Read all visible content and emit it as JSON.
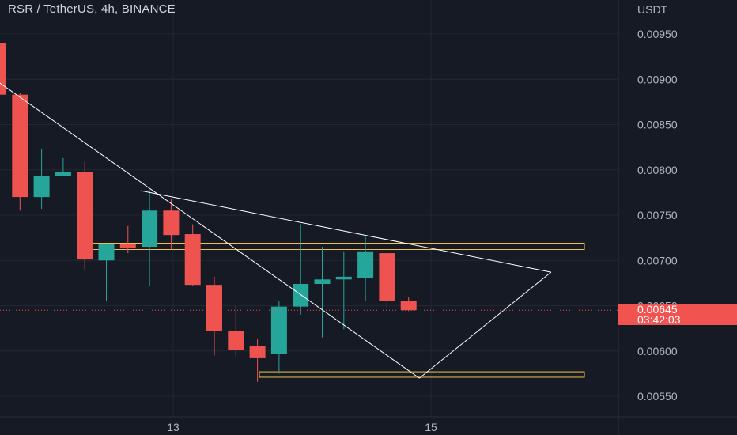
{
  "header": {
    "title": "RSR / TetherUS, 4h, BINANCE"
  },
  "price_axis": {
    "unit_label": "USDT",
    "ticks": [
      "0.00950",
      "0.00900",
      "0.00850",
      "0.00800",
      "0.00750",
      "0.00700",
      "0.00650",
      "0.00600",
      "0.00550"
    ]
  },
  "time_axis": {
    "ticks": [
      "13",
      "15"
    ]
  },
  "last_price": {
    "value": "0.00645",
    "countdown": "03:42:03",
    "color": "#f05350"
  },
  "colors": {
    "background": "#161a25",
    "up": "#26a69a",
    "down": "#ef5350",
    "grid": "#232733",
    "zone": "#f0c24b",
    "drawing": "#ffffff"
  },
  "chart_data": {
    "type": "candlestick",
    "ylim": [
      0.00525,
      0.00995
    ],
    "grid": true,
    "candles": [
      {
        "o": 0.0094,
        "h": 0.00945,
        "l": 0.0088,
        "c": 0.00883
      },
      {
        "o": 0.00883,
        "h": 0.00885,
        "l": 0.00755,
        "c": 0.0077
      },
      {
        "o": 0.0077,
        "h": 0.00823,
        "l": 0.00757,
        "c": 0.00793
      },
      {
        "o": 0.00793,
        "h": 0.00813,
        "l": 0.00793,
        "c": 0.00798
      },
      {
        "o": 0.00798,
        "h": 0.00809,
        "l": 0.0069,
        "c": 0.00701
      },
      {
        "o": 0.007,
        "h": 0.00718,
        "l": 0.00655,
        "c": 0.00718
      },
      {
        "o": 0.00718,
        "h": 0.00738,
        "l": 0.00708,
        "c": 0.00714
      },
      {
        "o": 0.00715,
        "h": 0.00778,
        "l": 0.00672,
        "c": 0.00755
      },
      {
        "o": 0.00755,
        "h": 0.00768,
        "l": 0.00712,
        "c": 0.00728
      },
      {
        "o": 0.00729,
        "h": 0.0074,
        "l": 0.00672,
        "c": 0.00673
      },
      {
        "o": 0.00673,
        "h": 0.00682,
        "l": 0.00595,
        "c": 0.00622
      },
      {
        "o": 0.00622,
        "h": 0.0065,
        "l": 0.00594,
        "c": 0.00601
      },
      {
        "o": 0.00605,
        "h": 0.00613,
        "l": 0.00566,
        "c": 0.00592
      },
      {
        "o": 0.00597,
        "h": 0.00655,
        "l": 0.00575,
        "c": 0.00649
      },
      {
        "o": 0.00649,
        "h": 0.0074,
        "l": 0.0064,
        "c": 0.00674
      },
      {
        "o": 0.00674,
        "h": 0.00715,
        "l": 0.00615,
        "c": 0.00679
      },
      {
        "o": 0.00679,
        "h": 0.0071,
        "l": 0.00624,
        "c": 0.00682
      },
      {
        "o": 0.00681,
        "h": 0.00726,
        "l": 0.00655,
        "c": 0.0071
      },
      {
        "o": 0.00708,
        "h": 0.00708,
        "l": 0.00648,
        "c": 0.00655
      },
      {
        "o": 0.00655,
        "h": 0.0066,
        "l": 0.00644,
        "c": 0.00645
      }
    ],
    "drawings": {
      "zones": [
        {
          "top": 0.00719,
          "bottom": 0.00712
        },
        {
          "top": 0.00577,
          "bottom": 0.00571
        }
      ],
      "lines": [
        {
          "from": {
            "bar": 0,
            "price": 0.00897
          },
          "to": {
            "bar": 19.5,
            "price": 0.0057
          }
        },
        {
          "from": {
            "bar": 19.5,
            "price": 0.0057
          },
          "to": {
            "bar": 25.6,
            "price": 0.00687
          }
        },
        {
          "from": {
            "bar": 6.6,
            "price": 0.00777
          },
          "to": {
            "bar": 25.6,
            "price": 0.00687
          }
        }
      ]
    }
  }
}
